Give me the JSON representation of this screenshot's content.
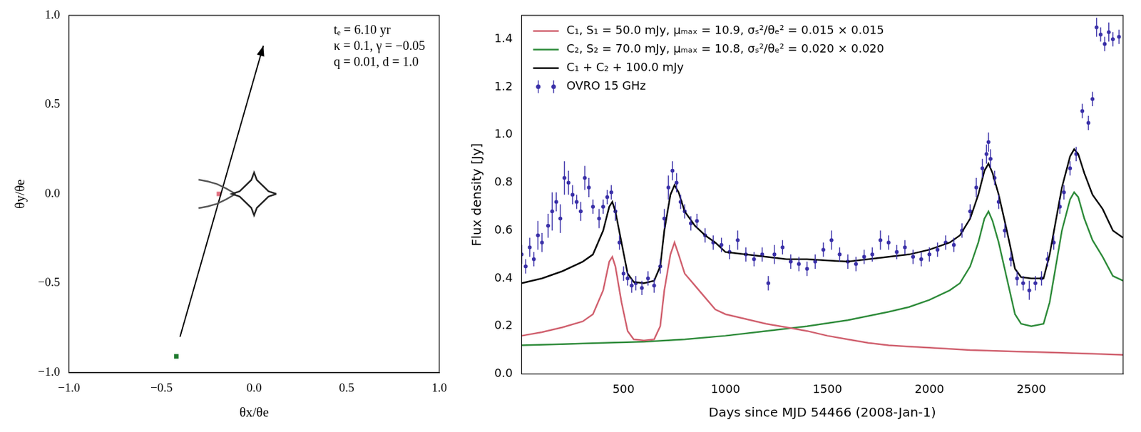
{
  "chart_data": [
    {
      "type": "scatter",
      "xlabel": "θx/θe",
      "ylabel": "θy/θe",
      "xlim": [
        -1,
        1
      ],
      "ylim": [
        -1,
        1
      ],
      "xticks": [
        {
          "value": -1,
          "label": "−1.0"
        },
        {
          "value": -0.5,
          "label": "−0.5"
        },
        {
          "value": 0,
          "label": "0.0"
        },
        {
          "value": 0.5,
          "label": "0.5"
        },
        {
          "value": 1,
          "label": "1.0"
        }
      ],
      "yticks": [
        {
          "value": -1,
          "label": "−1.0"
        },
        {
          "value": -0.5,
          "label": "−0.5"
        },
        {
          "value": 0,
          "label": "0.0"
        },
        {
          "value": 0.5,
          "label": "0.5"
        },
        {
          "value": 1,
          "label": "1.0"
        }
      ],
      "grid": false,
      "annotations": [
        "tₑ = 6.10 yr",
        "κ = 0.1, γ = −0.05",
        "q = 0.01, d = 1.0"
      ],
      "series": [
        {
          "color": "#222222",
          "line_style": "solid",
          "marker": "none",
          "x": [
            0.12,
            0.078,
            0.015,
            0,
            -0.015,
            -0.078,
            -0.12,
            -0.078,
            -0.015,
            0,
            0.015,
            0.078,
            0.12
          ],
          "values": [
            0,
            0.015,
            0.078,
            0.12,
            0.078,
            0.015,
            0,
            -0.015,
            -0.078,
            -0.12,
            -0.078,
            -0.015,
            0
          ]
        },
        {
          "color": "#555555",
          "line_style": "solid",
          "marker": "none",
          "x": [
            -0.1,
            -0.15,
            -0.2,
            -0.25,
            -0.3
          ],
          "values": [
            0.0,
            0.03,
            0.055,
            0.07,
            0.08
          ]
        },
        {
          "color": "#555555",
          "line_style": "solid",
          "marker": "none",
          "x": [
            -0.1,
            -0.15,
            -0.2,
            -0.25,
            -0.3
          ],
          "values": [
            0.0,
            -0.03,
            -0.055,
            -0.07,
            -0.08
          ]
        },
        {
          "color": "#000000",
          "line_style": "solid",
          "marker": "arrow",
          "x": [
            -0.4,
            0.05
          ],
          "values": [
            -0.8,
            0.83
          ]
        },
        {
          "color": "#1f7a2e",
          "line_style": "none",
          "marker": "square",
          "x": [
            -0.42
          ],
          "values": [
            -0.91
          ]
        },
        {
          "color": "#e07080",
          "line_style": "none",
          "marker": "square",
          "x": [
            -0.19
          ],
          "values": [
            0.0
          ]
        }
      ]
    },
    {
      "type": "line",
      "xlabel": "Days since MJD 54466 (2008-Jan-1)",
      "ylabel": "Flux density [Jy]",
      "xlim": [
        0,
        2950
      ],
      "ylim": [
        0,
        1.5
      ],
      "xticks": [
        500,
        1000,
        1500,
        2000,
        2500
      ],
      "yticks": [
        {
          "value": 0,
          "label": "0.0"
        },
        {
          "value": 0.2,
          "label": "0.2"
        },
        {
          "value": 0.4,
          "label": "0.4"
        },
        {
          "value": 0.6,
          "label": "0.6"
        },
        {
          "value": 0.8,
          "label": "0.8"
        },
        {
          "value": 1.0,
          "label": "1.0"
        },
        {
          "value": 1.2,
          "label": "1.2"
        },
        {
          "value": 1.4,
          "label": "1.4"
        }
      ],
      "grid": false,
      "legend": "upper left",
      "series": [
        {
          "name": "C₁, S₁ = 50.0 mJy, μₘₐₓ = 10.9, σₛ²/θₑ² = 0.015 × 0.015",
          "color": "#d0606e",
          "line_style": "solid",
          "marker": "none",
          "x": [
            0,
            100,
            200,
            300,
            350,
            400,
            430,
            445,
            460,
            490,
            520,
            550,
            600,
            650,
            680,
            700,
            730,
            750,
            770,
            800,
            850,
            900,
            950,
            1000,
            1100,
            1200,
            1300,
            1400,
            1500,
            1600,
            1700,
            1800,
            1900,
            2000,
            2200,
            2400,
            2600,
            2800,
            2950
          ],
          "values": [
            0.16,
            0.175,
            0.195,
            0.22,
            0.25,
            0.35,
            0.47,
            0.49,
            0.45,
            0.3,
            0.18,
            0.145,
            0.14,
            0.145,
            0.2,
            0.35,
            0.5,
            0.55,
            0.5,
            0.42,
            0.37,
            0.32,
            0.27,
            0.25,
            0.23,
            0.21,
            0.195,
            0.18,
            0.16,
            0.145,
            0.13,
            0.12,
            0.115,
            0.11,
            0.1,
            0.095,
            0.09,
            0.085,
            0.08
          ]
        },
        {
          "name": "C₂, S₂ = 70.0 mJy, μₘₐₓ = 10.8, σₛ²/θₑ² = 0.020 × 0.020",
          "color": "#2e8b3a",
          "line_style": "solid",
          "marker": "none",
          "x": [
            0,
            200,
            400,
            600,
            800,
            1000,
            1200,
            1400,
            1600,
            1800,
            1900,
            2000,
            2100,
            2150,
            2200,
            2240,
            2270,
            2290,
            2310,
            2340,
            2380,
            2420,
            2450,
            2500,
            2560,
            2590,
            2620,
            2650,
            2690,
            2710,
            2730,
            2760,
            2800,
            2850,
            2900,
            2950
          ],
          "values": [
            0.12,
            0.125,
            0.13,
            0.135,
            0.145,
            0.16,
            0.18,
            0.2,
            0.225,
            0.26,
            0.28,
            0.31,
            0.35,
            0.38,
            0.45,
            0.55,
            0.65,
            0.68,
            0.64,
            0.55,
            0.4,
            0.25,
            0.21,
            0.2,
            0.21,
            0.3,
            0.45,
            0.6,
            0.73,
            0.76,
            0.74,
            0.65,
            0.56,
            0.49,
            0.41,
            0.39
          ]
        },
        {
          "name": "C₁ + C₂ + 100.0 mJy",
          "color": "#000000",
          "line_style": "solid",
          "marker": "none",
          "x": [
            0,
            100,
            200,
            300,
            350,
            400,
            430,
            445,
            460,
            490,
            520,
            550,
            600,
            650,
            680,
            700,
            730,
            750,
            770,
            800,
            850,
            900,
            950,
            1000,
            1100,
            1200,
            1300,
            1400,
            1500,
            1600,
            1700,
            1800,
            1900,
            2000,
            2100,
            2150,
            2200,
            2240,
            2270,
            2290,
            2310,
            2340,
            2380,
            2420,
            2450,
            2500,
            2560,
            2590,
            2620,
            2650,
            2690,
            2710,
            2730,
            2760,
            2800,
            2850,
            2900,
            2950
          ],
          "values": [
            0.38,
            0.4,
            0.43,
            0.47,
            0.5,
            0.6,
            0.7,
            0.72,
            0.68,
            0.55,
            0.42,
            0.385,
            0.38,
            0.39,
            0.45,
            0.6,
            0.75,
            0.79,
            0.76,
            0.68,
            0.62,
            0.58,
            0.55,
            0.51,
            0.5,
            0.49,
            0.48,
            0.48,
            0.475,
            0.47,
            0.48,
            0.49,
            0.5,
            0.52,
            0.55,
            0.58,
            0.65,
            0.75,
            0.85,
            0.88,
            0.84,
            0.75,
            0.6,
            0.44,
            0.405,
            0.4,
            0.4,
            0.5,
            0.64,
            0.78,
            0.91,
            0.94,
            0.92,
            0.84,
            0.75,
            0.69,
            0.6,
            0.57
          ]
        },
        {
          "name": "OVRO 15 GHz",
          "color": "#3a30a8",
          "line_style": "none",
          "marker": "circle",
          "x": [
            0,
            20,
            40,
            60,
            80,
            100,
            130,
            150,
            170,
            190,
            210,
            230,
            250,
            270,
            290,
            310,
            330,
            350,
            380,
            400,
            420,
            440,
            460,
            480,
            500,
            520,
            540,
            560,
            590,
            620,
            650,
            680,
            700,
            720,
            740,
            760,
            780,
            800,
            830,
            860,
            900,
            940,
            980,
            1020,
            1060,
            1100,
            1140,
            1180,
            1210,
            1240,
            1280,
            1320,
            1360,
            1400,
            1440,
            1480,
            1520,
            1560,
            1600,
            1640,
            1680,
            1720,
            1760,
            1800,
            1840,
            1880,
            1920,
            1960,
            2000,
            2040,
            2080,
            2120,
            2160,
            2200,
            2230,
            2260,
            2280,
            2290,
            2300,
            2320,
            2340,
            2370,
            2400,
            2430,
            2460,
            2490,
            2520,
            2550,
            2580,
            2610,
            2640,
            2660,
            2690,
            2720,
            2750,
            2780,
            2800,
            2820,
            2840,
            2860,
            2880,
            2900,
            2930
          ],
          "values": [
            0.5,
            0.45,
            0.53,
            0.48,
            0.58,
            0.55,
            0.62,
            0.68,
            0.72,
            0.65,
            0.82,
            0.8,
            0.75,
            0.72,
            0.68,
            0.82,
            0.78,
            0.7,
            0.65,
            0.7,
            0.74,
            0.76,
            0.68,
            0.55,
            0.42,
            0.4,
            0.37,
            0.38,
            0.36,
            0.4,
            0.37,
            0.45,
            0.65,
            0.78,
            0.85,
            0.8,
            0.72,
            0.68,
            0.63,
            0.64,
            0.58,
            0.55,
            0.54,
            0.51,
            0.56,
            0.5,
            0.48,
            0.5,
            0.38,
            0.5,
            0.53,
            0.47,
            0.46,
            0.44,
            0.47,
            0.52,
            0.56,
            0.5,
            0.47,
            0.46,
            0.49,
            0.5,
            0.56,
            0.55,
            0.51,
            0.53,
            0.49,
            0.48,
            0.5,
            0.52,
            0.55,
            0.54,
            0.6,
            0.68,
            0.78,
            0.86,
            0.92,
            0.97,
            0.9,
            0.82,
            0.72,
            0.6,
            0.48,
            0.4,
            0.38,
            0.35,
            0.38,
            0.4,
            0.48,
            0.55,
            0.7,
            0.76,
            0.86,
            0.92,
            1.1,
            1.05,
            1.15,
            1.45,
            1.42,
            1.38,
            1.43,
            1.4,
            1.41
          ],
          "errors": [
            0.04,
            0.03,
            0.04,
            0.03,
            0.06,
            0.04,
            0.05,
            0.08,
            0.04,
            0.06,
            0.07,
            0.05,
            0.04,
            0.03,
            0.04,
            0.05,
            0.04,
            0.03,
            0.04,
            0.03,
            0.03,
            0.03,
            0.04,
            0.03,
            0.03,
            0.03,
            0.03,
            0.03,
            0.03,
            0.03,
            0.03,
            0.03,
            0.04,
            0.05,
            0.04,
            0.04,
            0.03,
            0.03,
            0.03,
            0.03,
            0.03,
            0.03,
            0.03,
            0.03,
            0.04,
            0.03,
            0.03,
            0.03,
            0.03,
            0.04,
            0.03,
            0.03,
            0.03,
            0.03,
            0.03,
            0.03,
            0.04,
            0.03,
            0.03,
            0.03,
            0.03,
            0.03,
            0.04,
            0.03,
            0.03,
            0.03,
            0.03,
            0.03,
            0.03,
            0.03,
            0.03,
            0.03,
            0.03,
            0.03,
            0.04,
            0.04,
            0.04,
            0.04,
            0.04,
            0.03,
            0.03,
            0.03,
            0.03,
            0.03,
            0.03,
            0.04,
            0.03,
            0.03,
            0.03,
            0.03,
            0.03,
            0.03,
            0.03,
            0.03,
            0.03,
            0.03,
            0.03,
            0.04,
            0.03,
            0.03,
            0.04,
            0.03,
            0.03
          ]
        }
      ]
    }
  ]
}
